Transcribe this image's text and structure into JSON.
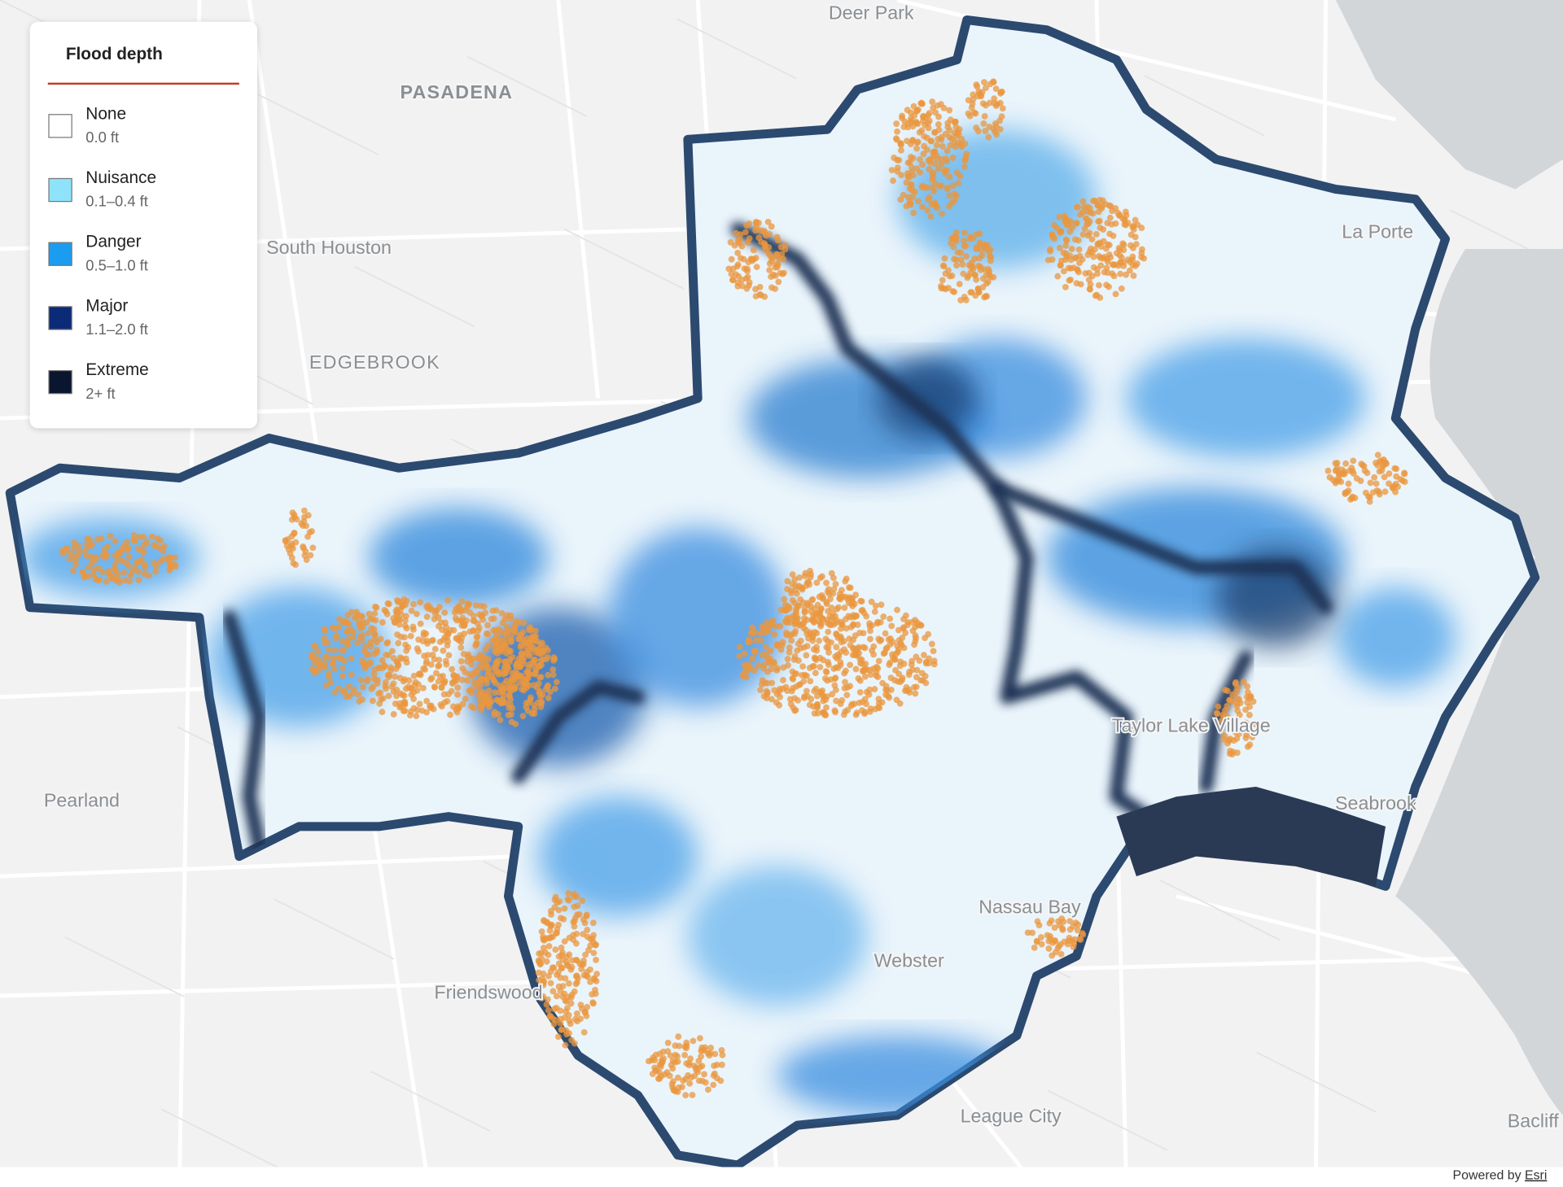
{
  "legend": {
    "title": "Flood depth",
    "items": [
      {
        "label": "None",
        "range": "0.0 ft",
        "color": "#ffffff"
      },
      {
        "label": "Nuisance",
        "range": "0.1–0.4 ft",
        "color": "#8ee3fb"
      },
      {
        "label": "Danger",
        "range": "0.5–1.0 ft",
        "color": "#1a9cf0"
      },
      {
        "label": "Major",
        "range": "1.1–2.0 ft",
        "color": "#0b2a78"
      },
      {
        "label": "Extreme",
        "range": "2+ ft",
        "color": "#0a1530"
      }
    ]
  },
  "places": [
    {
      "label": "Deer Park"
    },
    {
      "label": "PASADENA"
    },
    {
      "label": "South Houston"
    },
    {
      "label": "EDGEBROOK"
    },
    {
      "label": "La Porte"
    },
    {
      "label": "Pearland"
    },
    {
      "label": "Taylor Lake Village"
    },
    {
      "label": "Seabrook"
    },
    {
      "label": "Nassau Bay"
    },
    {
      "label": "Webster"
    },
    {
      "label": "Friendswood"
    },
    {
      "label": "League City"
    },
    {
      "label": "Bacliff"
    }
  ],
  "attribution": {
    "prefix": "Powered by",
    "link": "Esri"
  }
}
